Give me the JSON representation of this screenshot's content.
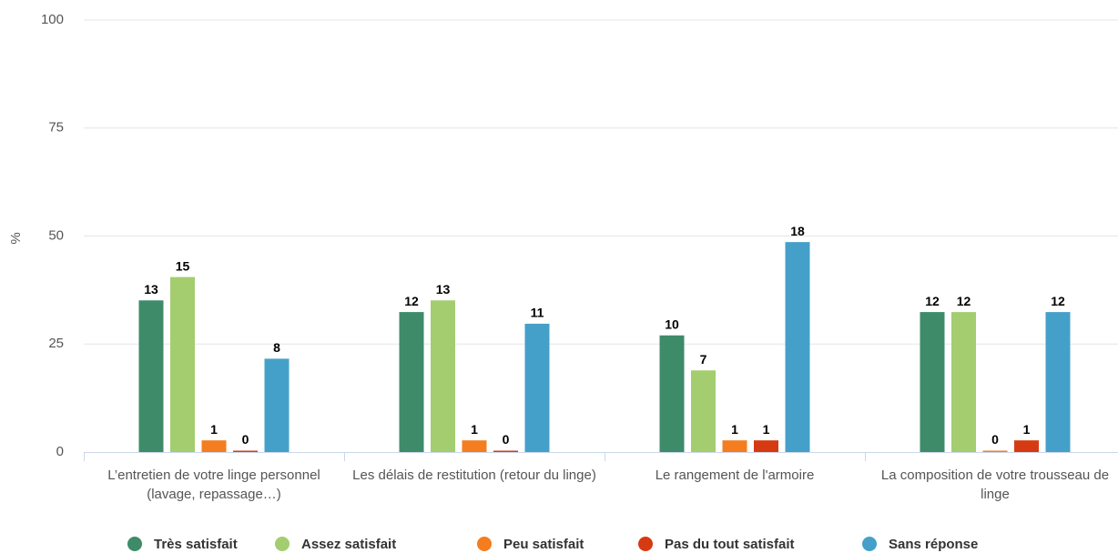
{
  "chart_data": {
    "type": "bar",
    "y_label": "%",
    "categories": [
      "L’entretien de votre linge personnel (lavage, repassage…)",
      "Les délais de restitution (retour du linge)",
      "Le rangement de l'armoire",
      "La composition de votre trousseau de linge"
    ],
    "series": [
      {
        "name": "Très satisfait",
        "color": "#3e8b6a",
        "values": [
          35.1,
          32.4,
          27.0,
          32.4
        ],
        "counts": [
          13,
          12,
          10,
          12
        ]
      },
      {
        "name": "Assez satisfait",
        "color": "#a3cd6f",
        "values": [
          40.5,
          35.1,
          18.9,
          32.4
        ],
        "counts": [
          15,
          13,
          7,
          12
        ]
      },
      {
        "name": "Peu satisfait",
        "color": "#f47d1f",
        "values": [
          2.7,
          2.7,
          2.7,
          0
        ],
        "counts": [
          1,
          1,
          1,
          0
        ]
      },
      {
        "name": "Pas du tout satisfait",
        "color": "#d63a12",
        "values": [
          0,
          0,
          2.7,
          2.7
        ],
        "counts": [
          0,
          0,
          1,
          1
        ]
      },
      {
        "name": "Sans réponse",
        "color": "#45a0c9",
        "values": [
          21.6,
          29.7,
          48.6,
          32.4
        ],
        "counts": [
          8,
          11,
          18,
          12
        ]
      }
    ],
    "ylim": [
      0,
      100
    ],
    "yticks": [
      0,
      25,
      50,
      75,
      100
    ],
    "grid": true,
    "legend": "bottom"
  }
}
